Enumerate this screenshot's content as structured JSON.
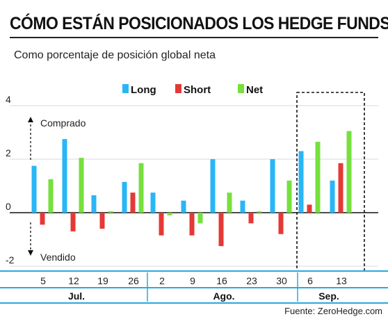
{
  "header": {
    "title": "CÓMO ESTÁN POSICIONADOS LOS HEDGE FUNDS",
    "subtitle": "Como porcentaje de posición global neta"
  },
  "source": "Fuente: ZeroHedge.com",
  "colors": {
    "long": "#29b6f6",
    "short": "#e53935",
    "net": "#76e03c",
    "axis": "#29a8e0",
    "rule": "#222222"
  },
  "chart_data": {
    "type": "bar",
    "categories": [
      "5",
      "12",
      "19",
      "26",
      "2",
      "9",
      "16",
      "23",
      "30",
      "6",
      "13"
    ],
    "months": [
      {
        "label": "Jul.",
        "from": 0,
        "to": 3
      },
      {
        "label": "Ago.",
        "from": 4,
        "to": 8
      },
      {
        "label": "Sep.",
        "from": 9,
        "to": 10
      }
    ],
    "series": [
      {
        "name": "Long",
        "color": "#29b6f6",
        "values": [
          1.75,
          2.75,
          0.65,
          1.15,
          0.75,
          0.45,
          2.0,
          0.45,
          2.0,
          2.3,
          1.2
        ]
      },
      {
        "name": "Short",
        "color": "#e53935",
        "values": [
          -0.45,
          -0.7,
          -0.6,
          0.75,
          -0.85,
          -0.85,
          -1.25,
          -0.4,
          -0.8,
          0.3,
          1.85
        ]
      },
      {
        "name": "Net",
        "color": "#76e03c",
        "values": [
          1.25,
          2.05,
          0.05,
          1.85,
          -0.1,
          -0.4,
          0.75,
          0.05,
          1.2,
          2.65,
          3.05
        ]
      }
    ],
    "yticks": [
      "4",
      "2",
      "0",
      "-2"
    ],
    "ylim": [
      -2,
      4
    ],
    "annotations": {
      "up": "Comprado",
      "down": "Vendido"
    },
    "highlight": {
      "from": 9,
      "to": 10
    }
  }
}
